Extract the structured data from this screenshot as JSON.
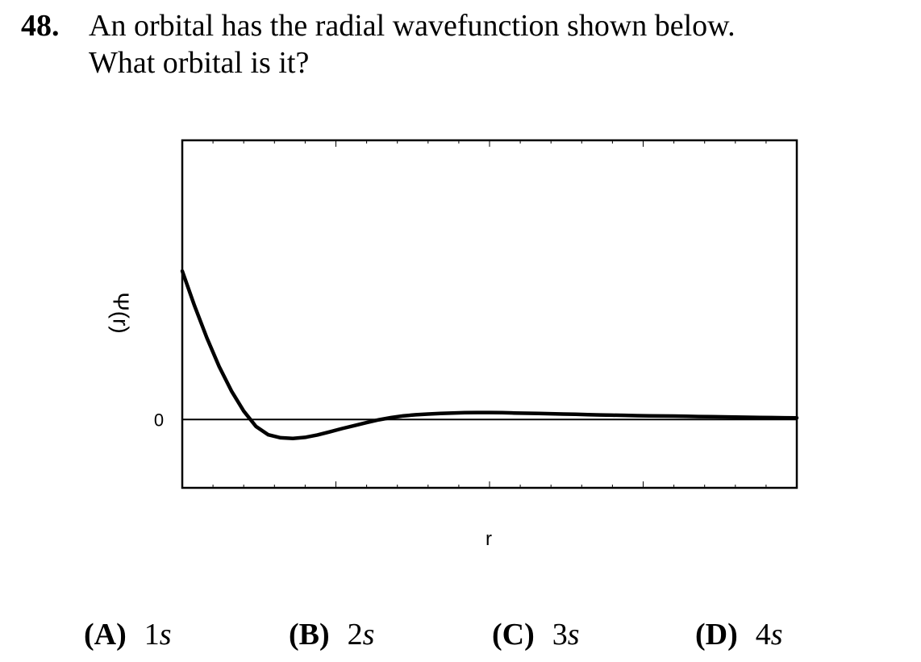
{
  "question": {
    "number": "48.",
    "line1": "An orbital has the radial wavefunction shown below.",
    "line2": "What orbital is it?"
  },
  "chart_data": {
    "type": "line",
    "title": "",
    "xlabel": "r",
    "ylabel": "Ψ(r)",
    "ytick_labels": [
      "0"
    ],
    "x_tick_labels": [],
    "grid": false,
    "legend": "none",
    "series": [
      {
        "x": [
          0,
          0.02,
          0.04,
          0.06,
          0.08,
          0.1,
          0.12,
          0.14,
          0.16,
          0.18,
          0.2,
          0.22,
          0.24,
          0.26,
          0.28,
          0.3,
          0.32,
          0.34,
          0.36,
          0.38,
          0.4,
          0.42,
          0.44,
          0.46,
          0.48,
          0.5,
          0.52,
          0.54,
          0.56,
          0.58,
          0.6,
          0.62,
          0.64,
          0.66,
          0.68,
          0.7,
          0.72,
          0.74,
          0.76,
          0.78,
          0.8,
          0.82,
          0.84,
          0.86,
          0.88,
          0.9,
          0.92,
          0.94,
          0.96,
          0.98,
          1.0
        ],
        "values": [
          1.0,
          0.766,
          0.55,
          0.357,
          0.192,
          0.057,
          -0.047,
          -0.103,
          -0.123,
          -0.127,
          -0.12,
          -0.104,
          -0.083,
          -0.061,
          -0.041,
          -0.021,
          -0.002,
          0.013,
          0.025,
          0.032,
          0.037,
          0.041,
          0.044,
          0.046,
          0.047,
          0.047,
          0.046,
          0.044,
          0.042,
          0.041,
          0.039,
          0.037,
          0.035,
          0.033,
          0.031,
          0.029,
          0.028,
          0.026,
          0.025,
          0.024,
          0.023,
          0.022,
          0.02,
          0.019,
          0.018,
          0.016,
          0.015,
          0.014,
          0.013,
          0.012,
          0.011
        ]
      }
    ],
    "ylim": [
      -0.46,
      1.88
    ],
    "xlim": [
      0,
      1
    ]
  },
  "choices": [
    {
      "letter": "(A)",
      "value_num": "1",
      "value_sub": "s"
    },
    {
      "letter": "(B)",
      "value_num": "2",
      "value_sub": "s"
    },
    {
      "letter": "(C)",
      "value_num": "3",
      "value_sub": "s"
    },
    {
      "letter": "(D)",
      "value_num": "4",
      "value_sub": "s"
    }
  ]
}
